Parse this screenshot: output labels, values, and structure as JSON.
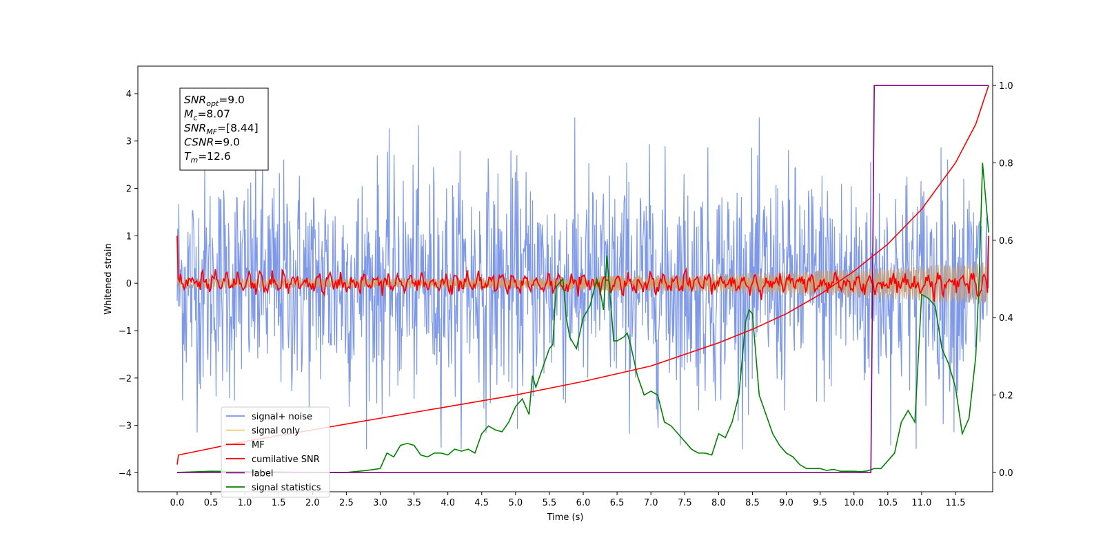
{
  "chart_data": {
    "type": "line",
    "xlabel": "Time (s)",
    "ylabel": "Whitened strain",
    "xlim": [
      -0.58,
      12.05
    ],
    "ylim_left": [
      -4.4,
      4.58
    ],
    "ylim_right": [
      -0.05,
      1.05
    ],
    "x_ticks": [
      0.0,
      0.5,
      1.0,
      1.5,
      2.0,
      2.5,
      3.0,
      3.5,
      4.0,
      4.5,
      5.0,
      5.5,
      6.0,
      6.5,
      7.0,
      7.5,
      8.0,
      8.5,
      9.0,
      9.5,
      10.0,
      10.5,
      11.0,
      11.5
    ],
    "x_tick_labels": [
      "0.0",
      "0.5",
      "1.0",
      "1.5",
      "2.0",
      "2.5",
      "3.0",
      "3.5",
      "4.0",
      "4.5",
      "5.0",
      "5.5",
      "6.0",
      "6.5",
      "7.0",
      "7.5",
      "8.0",
      "8.5",
      "9.0",
      "9.5",
      "10.0",
      "10.5",
      "11.0",
      "11.5"
    ],
    "y_left_ticks": [
      -4,
      -3,
      -2,
      -1,
      0,
      1,
      2,
      3,
      4
    ],
    "y_left_tick_labels": [
      "−4",
      "−3",
      "−2",
      "−1",
      "0",
      "1",
      "2",
      "3",
      "4"
    ],
    "y_right_ticks": [
      0.0,
      0.2,
      0.4,
      0.6,
      0.8,
      1.0
    ],
    "y_right_tick_labels": [
      "0.0",
      "0.2",
      "0.4",
      "0.6",
      "0.8",
      "1.0"
    ],
    "grid": false,
    "legend_position": "lower-left",
    "annotation": {
      "lines": [
        {
          "sym": "SNR",
          "sub": "opt",
          "value": "=9.0"
        },
        {
          "sym": "M",
          "sub": "c",
          "value": "=8.07"
        },
        {
          "sym": "SNR",
          "sub": "MF",
          "value": "=[8.44]"
        },
        {
          "sym": "CSNR",
          "sub": "",
          "value": "=9.0"
        },
        {
          "sym": "T",
          "sub": "m",
          "value": "=12.6"
        }
      ]
    },
    "series": [
      {
        "name": "signal+ noise",
        "color": "#7893e8",
        "axis": "left",
        "style": "noise band",
        "approx_range": [
          -2.5,
          2.5
        ],
        "x_range": [
          0.0,
          11.99
        ]
      },
      {
        "name": "signal only",
        "color": "#f5c56a",
        "axis": "left",
        "style": "chirp",
        "envelope_start": 0.1,
        "envelope_end": 0.45,
        "x_range": [
          0.0,
          11.99
        ]
      },
      {
        "name": "MF",
        "color": "#ff0000",
        "axis": "left",
        "style": "oscillating",
        "start_value": 1.0,
        "typical_amplitude": 0.2,
        "x_range": [
          0.0,
          11.99
        ]
      },
      {
        "name": "cumilative SNR",
        "color": "#ff0000",
        "axis": "right",
        "x": [
          0.0,
          0.02,
          1.0,
          2.0,
          3.0,
          4.0,
          5.0,
          6.0,
          7.0,
          8.0,
          8.5,
          9.0,
          9.5,
          10.0,
          10.5,
          11.0,
          11.5,
          11.8,
          11.99
        ],
        "y": [
          0.02,
          0.045,
          0.08,
          0.11,
          0.14,
          0.17,
          0.2,
          0.235,
          0.275,
          0.335,
          0.37,
          0.41,
          0.46,
          0.52,
          0.59,
          0.68,
          0.8,
          0.9,
          1.0
        ]
      },
      {
        "name": "label",
        "color": "#800080",
        "axis": "right",
        "x": [
          0.0,
          10.25,
          10.3,
          11.99
        ],
        "y": [
          0.0,
          0.0,
          1.0,
          1.0
        ]
      },
      {
        "name": "signal statistics",
        "color": "#008000",
        "axis": "right",
        "x": [
          0.0,
          0.5,
          1.0,
          1.5,
          2.0,
          2.5,
          2.8,
          3.0,
          3.1,
          3.2,
          3.3,
          3.4,
          3.5,
          3.6,
          3.7,
          3.8,
          3.9,
          4.0,
          4.1,
          4.2,
          4.3,
          4.4,
          4.5,
          4.6,
          4.7,
          4.8,
          4.9,
          5.0,
          5.1,
          5.2,
          5.25,
          5.3,
          5.4,
          5.5,
          5.55,
          5.6,
          5.7,
          5.75,
          5.8,
          5.9,
          6.0,
          6.1,
          6.2,
          6.25,
          6.3,
          6.35,
          6.4,
          6.45,
          6.5,
          6.6,
          6.65,
          6.7,
          6.8,
          6.9,
          7.0,
          7.1,
          7.2,
          7.3,
          7.4,
          7.5,
          7.6,
          7.7,
          7.8,
          7.9,
          8.0,
          8.1,
          8.2,
          8.3,
          8.4,
          8.45,
          8.5,
          8.6,
          8.7,
          8.8,
          8.9,
          9.0,
          9.1,
          9.2,
          9.3,
          9.4,
          9.5,
          9.6,
          9.7,
          9.8,
          9.9,
          10.0,
          10.1,
          10.2,
          10.3,
          10.4,
          10.5,
          10.6,
          10.7,
          10.8,
          10.9,
          11.0,
          11.1,
          11.2,
          11.3,
          11.4,
          11.5,
          11.6,
          11.7,
          11.8,
          11.85,
          11.9,
          11.99
        ],
        "y": [
          0.0,
          0.003,
          0.002,
          0.001,
          0.0,
          0.0,
          0.005,
          0.01,
          0.05,
          0.04,
          0.07,
          0.075,
          0.07,
          0.045,
          0.04,
          0.05,
          0.05,
          0.045,
          0.06,
          0.055,
          0.06,
          0.05,
          0.1,
          0.12,
          0.11,
          0.105,
          0.13,
          0.17,
          0.19,
          0.15,
          0.25,
          0.22,
          0.27,
          0.32,
          0.33,
          0.48,
          0.5,
          0.4,
          0.35,
          0.32,
          0.4,
          0.43,
          0.5,
          0.47,
          0.42,
          0.56,
          0.45,
          0.34,
          0.34,
          0.35,
          0.36,
          0.33,
          0.25,
          0.2,
          0.21,
          0.2,
          0.13,
          0.12,
          0.1,
          0.08,
          0.06,
          0.05,
          0.05,
          0.045,
          0.1,
          0.09,
          0.13,
          0.2,
          0.39,
          0.42,
          0.41,
          0.2,
          0.15,
          0.1,
          0.07,
          0.05,
          0.04,
          0.02,
          0.01,
          0.01,
          0.01,
          0.005,
          0.008,
          0.003,
          0.003,
          0.003,
          0.002,
          0.004,
          0.01,
          0.01,
          0.03,
          0.05,
          0.13,
          0.16,
          0.13,
          0.46,
          0.45,
          0.43,
          0.32,
          0.28,
          0.22,
          0.1,
          0.14,
          0.3,
          0.5,
          0.8,
          0.62
        ]
      }
    ]
  }
}
